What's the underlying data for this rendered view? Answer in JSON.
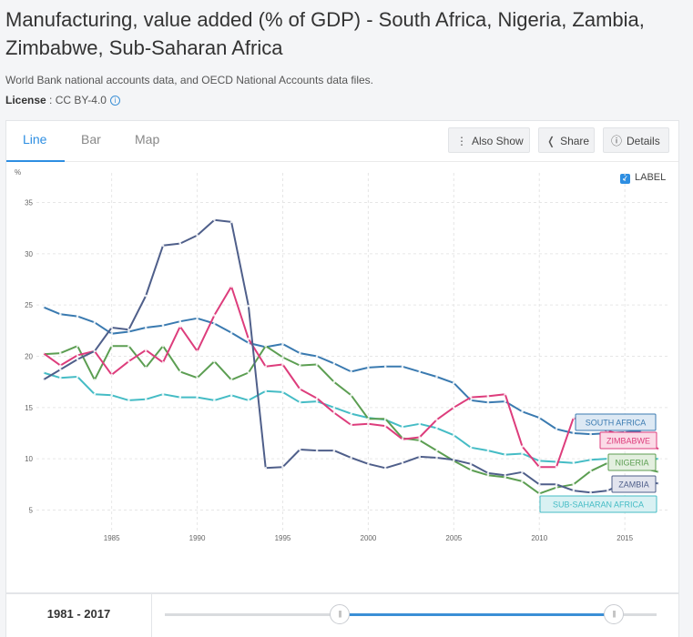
{
  "header": {
    "title": "Manufacturing, value added (% of GDP) - South Africa, Nigeria, Zambia, Zimbabwe, Sub-Saharan Africa",
    "source": "World Bank national accounts data, and OECD National Accounts data files.",
    "license_label": "License",
    "license_value": ": CC BY-4.0",
    "info_icon": "i"
  },
  "tabs": [
    {
      "label": "Line",
      "active": true
    },
    {
      "label": "Bar",
      "active": false
    },
    {
      "label": "Map",
      "active": false
    }
  ],
  "toolbar": {
    "also_show": "Also Show",
    "share": "Share",
    "details": "Details"
  },
  "label_toggle": {
    "text": "LABEL",
    "checked": true
  },
  "footer": {
    "range": "1981 - 2017",
    "handle_glyph": "|||"
  },
  "chart_data": {
    "type": "line",
    "ylabel": "%",
    "ylim": [
      3,
      37
    ],
    "xlim": [
      1980.6,
      2017.6
    ],
    "yticks": [
      5,
      10,
      15,
      20,
      25,
      30,
      35
    ],
    "xticks": [
      1985,
      1990,
      1995,
      2000,
      2005,
      2010,
      2015
    ],
    "grid": true,
    "x": [
      1981,
      1982,
      1983,
      1984,
      1985,
      1986,
      1987,
      1988,
      1989,
      1990,
      1991,
      1992,
      1993,
      1994,
      1995,
      1996,
      1997,
      1998,
      1999,
      2000,
      2001,
      2002,
      2003,
      2004,
      2005,
      2006,
      2007,
      2008,
      2009,
      2010,
      2011,
      2012,
      2013,
      2014,
      2015,
      2016,
      2017
    ],
    "series": [
      {
        "name": "SOUTH AFRICA",
        "color": "#3a7ab0",
        "values": [
          24.8,
          24.1,
          23.9,
          23.3,
          22.2,
          22.4,
          22.8,
          23.0,
          23.4,
          23.7,
          23.2,
          22.3,
          21.3,
          20.9,
          21.2,
          20.3,
          20.0,
          19.3,
          18.5,
          18.9,
          19.0,
          19.0,
          18.5,
          18.0,
          17.4,
          15.7,
          15.5,
          15.6,
          14.6,
          14.0,
          12.9,
          12.5,
          12.4,
          12.5,
          12.6,
          12.7,
          null
        ]
      },
      {
        "name": "ZIMBABWE",
        "color": "#dd3d7c",
        "values": [
          20.3,
          19.1,
          20.1,
          20.5,
          18.2,
          19.5,
          20.6,
          19.4,
          22.9,
          20.5,
          24.0,
          26.8,
          21.7,
          19.0,
          19.2,
          16.8,
          15.9,
          14.5,
          13.3,
          13.4,
          13.2,
          11.9,
          12.1,
          13.8,
          15.0,
          16.0,
          16.1,
          16.3,
          11.2,
          9.2,
          9.2,
          14.0,
          13.2,
          12.7,
          12.3,
          12.0,
          10.9
        ]
      },
      {
        "name": "NIGERIA",
        "color": "#5c9e52",
        "values": [
          20.2,
          20.3,
          21.0,
          17.7,
          21.0,
          21.0,
          18.9,
          21.0,
          18.5,
          17.9,
          19.5,
          17.7,
          18.4,
          21.0,
          19.9,
          19.1,
          19.2,
          17.5,
          16.2,
          13.9,
          13.9,
          12.0,
          11.8,
          10.8,
          9.8,
          8.9,
          8.4,
          8.2,
          7.8,
          6.6,
          7.2,
          7.5,
          8.8,
          9.6,
          9.8,
          9.1,
          8.7
        ]
      },
      {
        "name": "ZAMBIA",
        "color": "#4f5f8a",
        "values": [
          17.7,
          18.7,
          19.7,
          20.5,
          22.8,
          22.6,
          25.9,
          30.8,
          31.0,
          31.8,
          33.3,
          33.1,
          24.9,
          9.1,
          9.2,
          10.9,
          10.8,
          10.8,
          10.1,
          9.5,
          9.1,
          9.6,
          10.2,
          10.1,
          9.9,
          9.5,
          8.6,
          8.4,
          8.7,
          7.5,
          7.5,
          6.9,
          6.7,
          6.9,
          7.7,
          7.7,
          7.6
        ]
      },
      {
        "name": "SUB-SAHARAN AFRICA",
        "color": "#45bcc5",
        "values": [
          18.4,
          17.9,
          18.0,
          16.3,
          16.2,
          15.7,
          15.8,
          16.3,
          16.0,
          16.0,
          15.7,
          16.2,
          15.7,
          16.6,
          16.5,
          15.5,
          15.6,
          15.0,
          14.4,
          14.0,
          13.8,
          13.1,
          13.4,
          13.0,
          12.3,
          11.1,
          10.8,
          10.4,
          10.5,
          9.8,
          9.7,
          9.6,
          9.9,
          10.0,
          10.0,
          9.9,
          10.0
        ]
      }
    ]
  }
}
